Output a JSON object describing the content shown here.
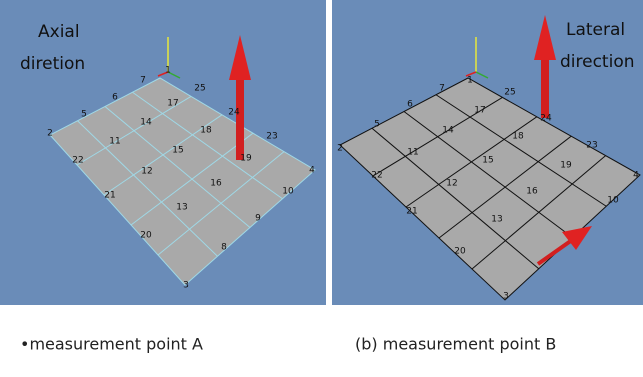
{
  "panels": [
    {
      "label_lines": [
        "Axial",
        "diretion"
      ],
      "nodes": [
        "7",
        "1",
        "25",
        "6",
        "17",
        "5",
        "14",
        "24",
        "18",
        "23",
        "2",
        "11",
        "15",
        "19",
        "22",
        "12",
        "16",
        "4",
        "10",
        "21",
        "13",
        "9",
        "20",
        "8",
        "3"
      ],
      "caption": "•measurement point A"
    },
    {
      "label_lines": [
        "Lateral",
        "direction"
      ],
      "nodes": [
        "7",
        "1",
        "25",
        "6",
        "17",
        "5",
        "14",
        "24",
        "18",
        "23",
        "2",
        "11",
        "15",
        "19",
        "22",
        "12",
        "16",
        "4",
        "10",
        "21",
        "13",
        "20",
        "3"
      ],
      "caption": "(b)    measurement point B"
    }
  ]
}
